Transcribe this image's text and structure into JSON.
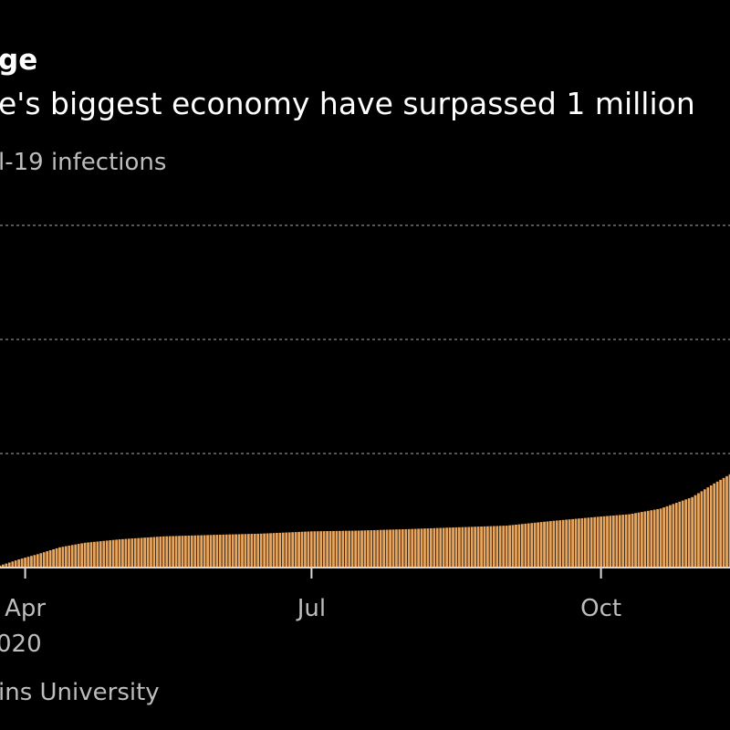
{
  "header": {
    "title": "ge",
    "subtitle": "e's biggest economy have surpassed 1 million",
    "unit_label": "l-19 infections"
  },
  "footer": {
    "source": "ins University"
  },
  "colors": {
    "background": "#000000",
    "bar": "#e8a55e",
    "bar_edge": "#000000",
    "grid": "#8a8a8a",
    "axis": "#d9d9d9",
    "text_secondary": "#bdbdbd"
  },
  "chart_data": {
    "type": "bar",
    "title": "ge",
    "subtitle": "e's biggest economy have surpassed 1 million",
    "ylabel": "l-19 infections",
    "x_tick_labels": [
      "Apr",
      "Jul",
      "Oct"
    ],
    "x_year_label": "020",
    "grid": true,
    "ylim": [
      0,
      1500000
    ],
    "x_range": [
      "2020-03-24",
      "2020-11-11"
    ],
    "series": [
      {
        "name": "",
        "points": [
          [
            "2020-03-24",
            10000
          ],
          [
            "2020-03-30",
            37000
          ],
          [
            "2020-04-05",
            60000
          ],
          [
            "2020-04-12",
            90000
          ],
          [
            "2020-04-20",
            110000
          ],
          [
            "2020-05-01",
            125000
          ],
          [
            "2020-05-15",
            138000
          ],
          [
            "2020-06-01",
            145000
          ],
          [
            "2020-06-15",
            150000
          ],
          [
            "2020-07-01",
            160000
          ],
          [
            "2020-07-15",
            163000
          ],
          [
            "2020-08-01",
            170000
          ],
          [
            "2020-08-15",
            177000
          ],
          [
            "2020-09-01",
            185000
          ],
          [
            "2020-09-15",
            205000
          ],
          [
            "2020-10-01",
            225000
          ],
          [
            "2020-10-10",
            235000
          ],
          [
            "2020-10-20",
            260000
          ],
          [
            "2020-10-30",
            310000
          ],
          [
            "2020-11-06",
            370000
          ],
          [
            "2020-11-11",
            410000
          ]
        ]
      }
    ]
  }
}
